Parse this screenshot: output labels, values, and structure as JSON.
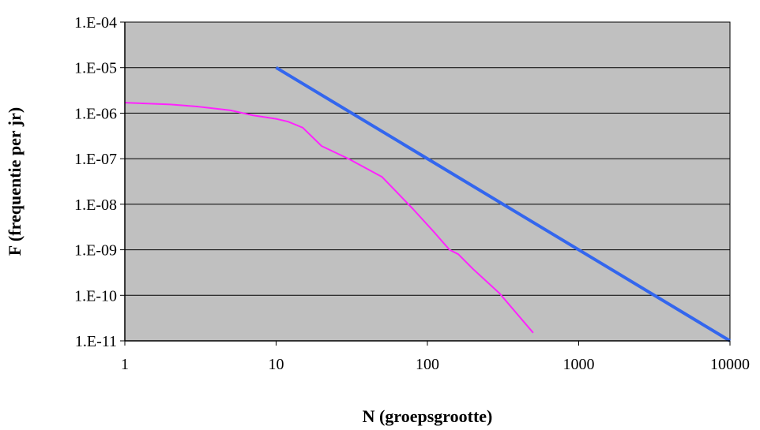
{
  "chart_data": {
    "type": "line",
    "xlabel": "N (groepsgrootte)",
    "ylabel": "F (frequentie per jr)",
    "x_scale": "log",
    "y_scale": "log",
    "xlim": [
      1,
      10000
    ],
    "ylim": [
      1e-11,
      0.0001
    ],
    "grid": "horizontal",
    "plot_background": "#c0c0c0",
    "x_ticks": [
      {
        "value": 1,
        "label": "1"
      },
      {
        "value": 10,
        "label": "10"
      },
      {
        "value": 100,
        "label": "100"
      },
      {
        "value": 1000,
        "label": "1000"
      },
      {
        "value": 10000,
        "label": "10000"
      }
    ],
    "y_ticks": [
      {
        "value": 0.0001,
        "label": "1.E-04"
      },
      {
        "value": 1e-05,
        "label": "1.E-05"
      },
      {
        "value": 1e-06,
        "label": "1.E-06"
      },
      {
        "value": 1e-07,
        "label": "1.E-07"
      },
      {
        "value": 1e-08,
        "label": "1.E-08"
      },
      {
        "value": 1e-09,
        "label": "1.E-09"
      },
      {
        "value": 1e-10,
        "label": "1.E-10"
      },
      {
        "value": 1e-11,
        "label": "1.E-11"
      }
    ],
    "series": [
      {
        "color": "#3366ee",
        "points": [
          [
            10,
            1e-05
          ],
          [
            10000,
            1e-11
          ]
        ]
      },
      {
        "color": "#ff22ff",
        "points": [
          [
            1,
            1.7e-06
          ],
          [
            2,
            1.55e-06
          ],
          [
            3,
            1.4e-06
          ],
          [
            5,
            1.15e-06
          ],
          [
            7,
            9e-07
          ],
          [
            10,
            7.5e-07
          ],
          [
            12,
            6.5e-07
          ],
          [
            15,
            4.8e-07
          ],
          [
            20,
            1.9e-07
          ],
          [
            30,
            1e-07
          ],
          [
            50,
            4e-08
          ],
          [
            80,
            8e-09
          ],
          [
            110,
            2.5e-09
          ],
          [
            140,
            1e-09
          ],
          [
            160,
            8e-10
          ],
          [
            200,
            3.8e-10
          ],
          [
            300,
            1.1e-10
          ],
          [
            500,
            1.5e-11
          ]
        ]
      }
    ]
  }
}
